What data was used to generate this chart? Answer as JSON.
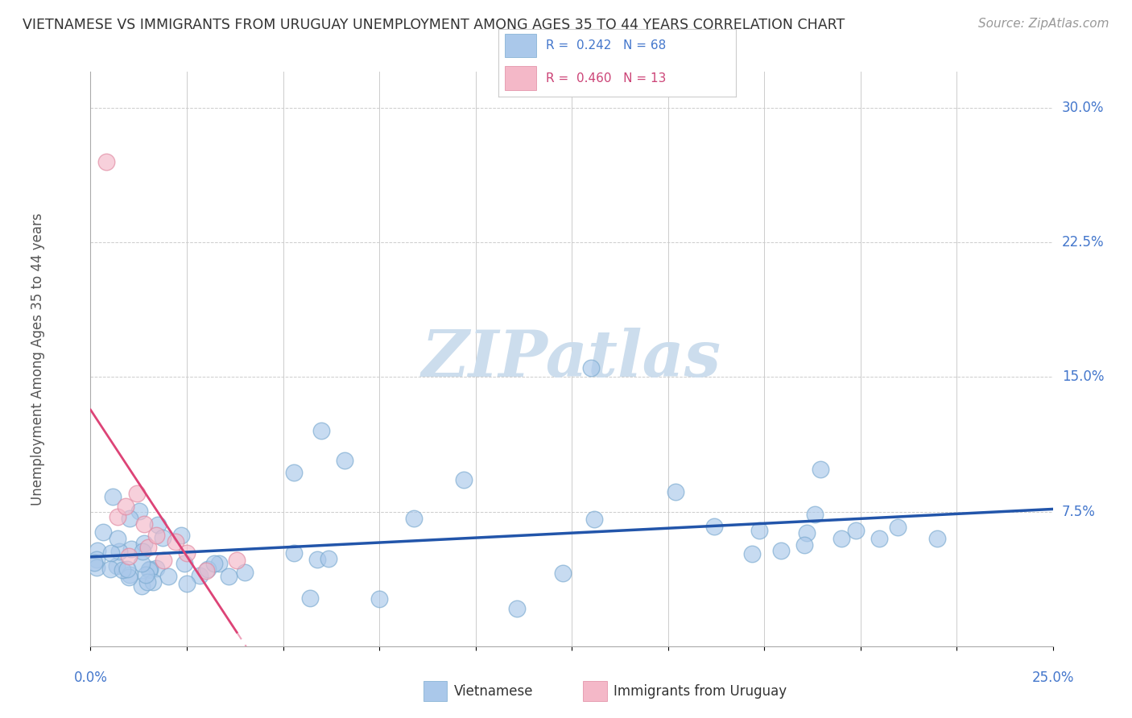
{
  "title": "VIETNAMESE VS IMMIGRANTS FROM URUGUAY UNEMPLOYMENT AMONG AGES 35 TO 44 YEARS CORRELATION CHART",
  "source": "Source: ZipAtlas.com",
  "ylabel": "Unemployment Among Ages 35 to 44 years",
  "r1": "0.242",
  "n1": "68",
  "r2": "0.460",
  "n2": "13",
  "xlim": [
    0.0,
    0.25
  ],
  "ylim": [
    0.0,
    0.32
  ],
  "blue_color": "#aac8ea",
  "blue_edge_color": "#7aaad0",
  "pink_color": "#f4b8c8",
  "pink_edge_color": "#e088a0",
  "blue_line_color": "#2255aa",
  "pink_line_color": "#dd4477",
  "watermark_color": "#ccdded",
  "background_color": "#ffffff",
  "grid_color": "#cccccc",
  "ytick_color": "#4477cc",
  "xtick_color": "#4477cc",
  "title_color": "#333333",
  "source_color": "#999999",
  "legend_text_color": "#333333",
  "legend_r_color1": "#4477cc",
  "legend_r_color2": "#cc4477"
}
